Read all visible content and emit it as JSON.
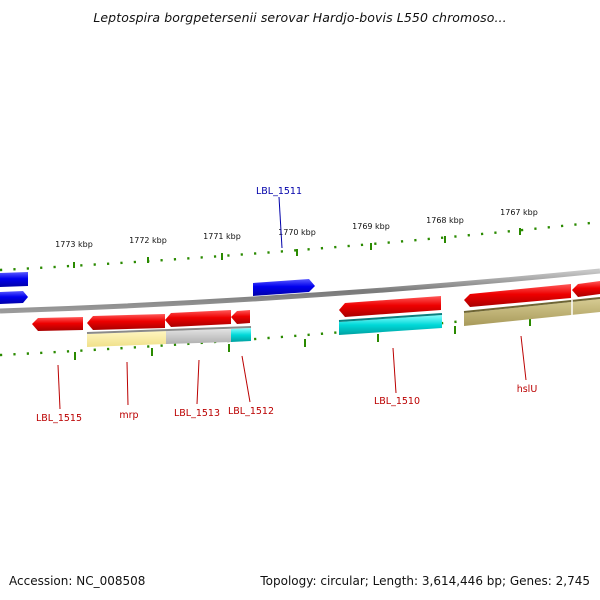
{
  "title": "Leptospira borgpetersenii serovar Hardjo-bovis L550 chromoso...",
  "footer": {
    "accession": "Accession: NC_008508",
    "summary": "Topology: circular; Length: 3,614,446 bp; Genes: 2,745"
  },
  "colors": {
    "forward_gene": "#0000ff",
    "reverse_gene": "#ee0000",
    "backbone": "#808080",
    "tick": "#2a8a00",
    "label_blue": "#0000aa",
    "label_red": "#bb0000"
  },
  "scale_labels": [
    "1773 kbp",
    "1772 kbp",
    "1771 kbp",
    "1770 kbp",
    "1769 kbp",
    "1768 kbp",
    "1767 kbp"
  ],
  "gene_labels": {
    "lbl_1511": "LBL_1511",
    "lbl_1515": "LBL_1515",
    "mrp": "mrp",
    "lbl_1513": "LBL_1513",
    "lbl_1512": "LBL_1512",
    "lbl_1510": "LBL_1510",
    "hslu": "hslU"
  }
}
